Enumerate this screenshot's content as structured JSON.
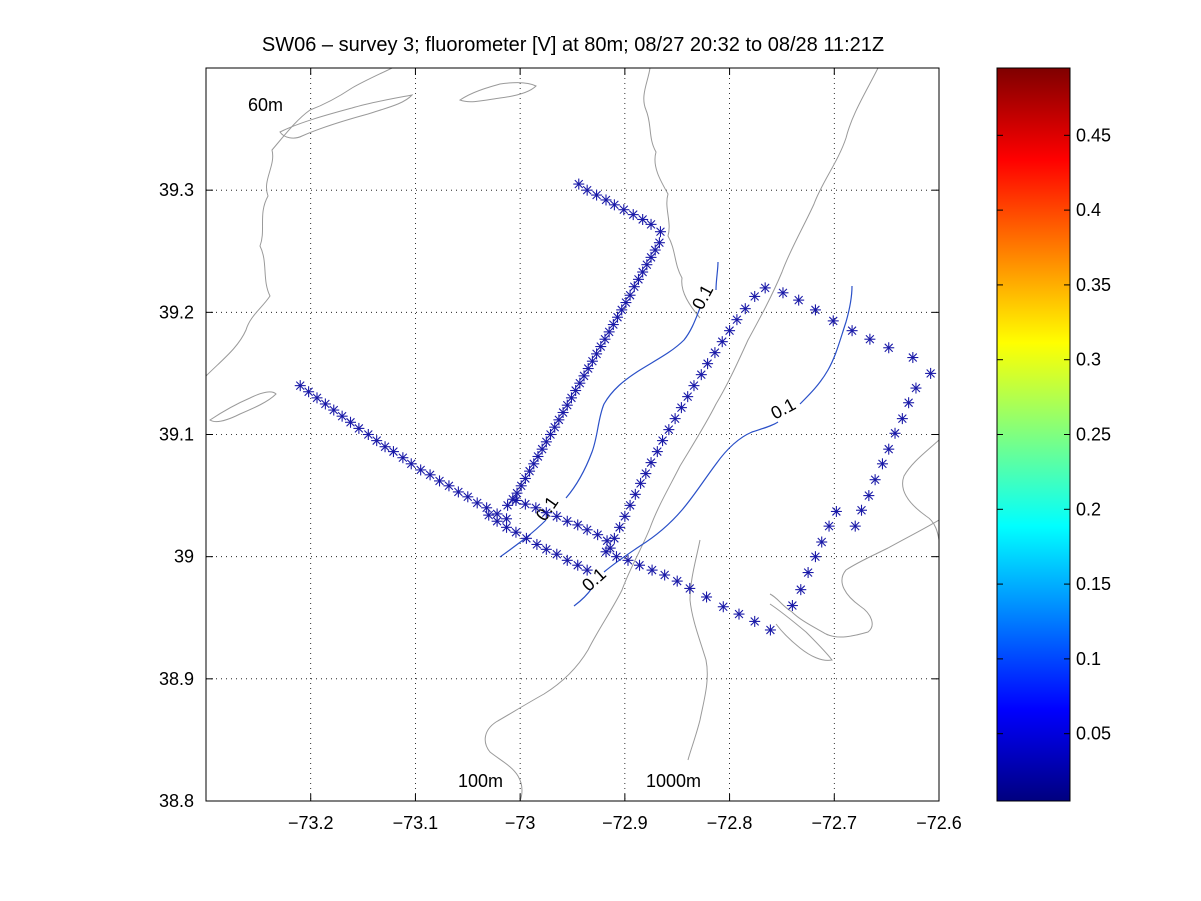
{
  "chart_data": {
    "type": "scatter",
    "title": "SW06 – survey 3; fluorometer [V] at 80m; 08/27 20:32 to 08/28 11:21Z",
    "xlabel": "",
    "ylabel": "",
    "xlim": [
      -73.3,
      -72.6
    ],
    "ylim": [
      38.8,
      39.4
    ],
    "xticks": [
      -73.2,
      -73.1,
      -73.0,
      -72.9,
      -72.8,
      -72.7,
      -72.6
    ],
    "xtick_labels": [
      "−73.2",
      "−73.1",
      "−73",
      "−72.9",
      "−72.8",
      "−72.7",
      "−72.6"
    ],
    "yticks": [
      38.8,
      38.9,
      39.0,
      39.1,
      39.2,
      39.3
    ],
    "ytick_labels": [
      "38.8",
      "38.9",
      "39",
      "39.1",
      "39.2",
      "39.3"
    ],
    "grid": true,
    "marker": "*",
    "marker_color": "#1a1aa8",
    "series": [
      {
        "values": [
          [
            -72.944,
            39.305
          ],
          [
            -72.936,
            39.3
          ],
          [
            -72.927,
            39.296
          ],
          [
            -72.918,
            39.292
          ],
          [
            -72.91,
            39.288
          ],
          [
            -72.901,
            39.284
          ],
          [
            -72.892,
            39.28
          ],
          [
            -72.883,
            39.276
          ],
          [
            -72.875,
            39.272
          ],
          [
            -72.866,
            39.266
          ],
          [
            -72.867,
            39.257
          ],
          [
            -72.871,
            39.251
          ],
          [
            -72.875,
            39.245
          ],
          [
            -72.879,
            39.239
          ],
          [
            -72.883,
            39.233
          ],
          [
            -72.887,
            39.227
          ],
          [
            -72.891,
            39.221
          ],
          [
            -72.895,
            39.214
          ],
          [
            -72.899,
            39.208
          ],
          [
            -72.903,
            39.202
          ],
          [
            -72.907,
            39.196
          ],
          [
            -72.911,
            39.19
          ],
          [
            -72.915,
            39.184
          ],
          [
            -72.919,
            39.178
          ],
          [
            -72.923,
            39.172
          ],
          [
            -72.927,
            39.166
          ],
          [
            -72.931,
            39.16
          ],
          [
            -72.935,
            39.154
          ],
          [
            -72.939,
            39.148
          ],
          [
            -72.943,
            39.142
          ],
          [
            -72.947,
            39.136
          ],
          [
            -72.951,
            39.13
          ],
          [
            -72.955,
            39.124
          ],
          [
            -72.959,
            39.118
          ],
          [
            -72.963,
            39.112
          ],
          [
            -72.967,
            39.106
          ],
          [
            -72.971,
            39.1
          ],
          [
            -72.975,
            39.094
          ],
          [
            -72.979,
            39.088
          ],
          [
            -72.983,
            39.082
          ],
          [
            -72.987,
            39.076
          ],
          [
            -72.991,
            39.07
          ],
          [
            -72.995,
            39.064
          ],
          [
            -72.999,
            39.058
          ],
          [
            -73.003,
            39.052
          ],
          [
            -73.007,
            39.047
          ],
          [
            -73.012,
            39.042
          ],
          [
            -73.21,
            39.14
          ],
          [
            -73.202,
            39.135
          ],
          [
            -73.194,
            39.13
          ],
          [
            -73.186,
            39.125
          ],
          [
            -73.178,
            39.12
          ],
          [
            -73.17,
            39.115
          ],
          [
            -73.162,
            39.11
          ],
          [
            -73.154,
            39.105
          ],
          [
            -73.145,
            39.1
          ],
          [
            -73.137,
            39.095
          ],
          [
            -73.129,
            39.09
          ],
          [
            -73.121,
            39.086
          ],
          [
            -73.112,
            39.081
          ],
          [
            -73.104,
            39.076
          ],
          [
            -73.095,
            39.071
          ],
          [
            -73.086,
            39.067
          ],
          [
            -73.077,
            39.062
          ],
          [
            -73.068,
            39.058
          ],
          [
            -73.059,
            39.053
          ],
          [
            -73.05,
            39.049
          ],
          [
            -73.041,
            39.044
          ],
          [
            -73.032,
            39.04
          ],
          [
            -73.022,
            39.035
          ],
          [
            -73.013,
            39.031
          ],
          [
            -73.004,
            39.046
          ],
          [
            -72.995,
            39.043
          ],
          [
            -72.985,
            39.04
          ],
          [
            -72.975,
            39.036
          ],
          [
            -72.965,
            39.033
          ],
          [
            -72.955,
            39.029
          ],
          [
            -72.945,
            39.026
          ],
          [
            -72.936,
            39.022
          ],
          [
            -72.926,
            39.018
          ],
          [
            -72.917,
            39.013
          ],
          [
            -73.03,
            39.034
          ],
          [
            -73.022,
            39.029
          ],
          [
            -73.013,
            39.024
          ],
          [
            -73.004,
            39.02
          ],
          [
            -72.994,
            39.015
          ],
          [
            -72.984,
            39.01
          ],
          [
            -72.975,
            39.006
          ],
          [
            -72.965,
            39.002
          ],
          [
            -72.955,
            38.997
          ],
          [
            -72.945,
            38.993
          ],
          [
            -72.936,
            38.989
          ],
          [
            -72.918,
            39.004
          ],
          [
            -72.908,
            39.0
          ],
          [
            -72.897,
            38.997
          ],
          [
            -72.886,
            38.993
          ],
          [
            -72.874,
            38.989
          ],
          [
            -72.862,
            38.985
          ],
          [
            -72.85,
            38.98
          ],
          [
            -72.838,
            38.974
          ],
          [
            -72.822,
            38.967
          ],
          [
            -72.806,
            38.959
          ],
          [
            -72.791,
            38.953
          ],
          [
            -72.776,
            38.947
          ],
          [
            -72.761,
            38.94
          ],
          [
            -72.914,
            39.007
          ],
          [
            -72.91,
            39.015
          ],
          [
            -72.905,
            39.024
          ],
          [
            -72.9,
            39.033
          ],
          [
            -72.895,
            39.042
          ],
          [
            -72.89,
            39.051
          ],
          [
            -72.885,
            39.06
          ],
          [
            -72.88,
            39.068
          ],
          [
            -72.875,
            39.077
          ],
          [
            -72.869,
            39.086
          ],
          [
            -72.864,
            39.095
          ],
          [
            -72.858,
            39.104
          ],
          [
            -72.852,
            39.113
          ],
          [
            -72.846,
            39.122
          ],
          [
            -72.84,
            39.131
          ],
          [
            -72.834,
            39.14
          ],
          [
            -72.827,
            39.149
          ],
          [
            -72.821,
            39.158
          ],
          [
            -72.814,
            39.167
          ],
          [
            -72.807,
            39.176
          ],
          [
            -72.8,
            39.185
          ],
          [
            -72.793,
            39.194
          ],
          [
            -72.785,
            39.203
          ],
          [
            -72.776,
            39.213
          ],
          [
            -72.766,
            39.22
          ],
          [
            -72.749,
            39.216
          ],
          [
            -72.734,
            39.21
          ],
          [
            -72.718,
            39.202
          ],
          [
            -72.701,
            39.193
          ],
          [
            -72.683,
            39.185
          ],
          [
            -72.666,
            39.178
          ],
          [
            -72.648,
            39.171
          ],
          [
            -72.625,
            39.163
          ],
          [
            -72.608,
            39.15
          ],
          [
            -72.622,
            39.138
          ],
          [
            -72.629,
            39.126
          ],
          [
            -72.635,
            39.113
          ],
          [
            -72.642,
            39.101
          ],
          [
            -72.648,
            39.088
          ],
          [
            -72.654,
            39.076
          ],
          [
            -72.661,
            39.063
          ],
          [
            -72.667,
            39.05
          ],
          [
            -72.674,
            39.038
          ],
          [
            -72.68,
            39.025
          ],
          [
            -72.698,
            39.037
          ],
          [
            -72.705,
            39.025
          ],
          [
            -72.712,
            39.012
          ],
          [
            -72.718,
            39.0
          ],
          [
            -72.725,
            38.987
          ],
          [
            -72.732,
            38.973
          ],
          [
            -72.74,
            38.96
          ]
        ]
      }
    ],
    "contour_level_label": "0.1",
    "contour_color": "#2a50c8",
    "depth_labels": [
      "60m",
      "100m",
      "1000m"
    ],
    "colorbar": {
      "colormap": "jet",
      "range": [
        0.005,
        0.495
      ],
      "ticks": [
        0.05,
        0.1,
        0.15,
        0.2,
        0.25,
        0.3,
        0.35,
        0.4,
        0.45
      ],
      "tick_labels": [
        "0.05",
        "0.1",
        "0.15",
        "0.2",
        "0.25",
        "0.3",
        "0.35",
        "0.4",
        "0.45"
      ]
    }
  }
}
